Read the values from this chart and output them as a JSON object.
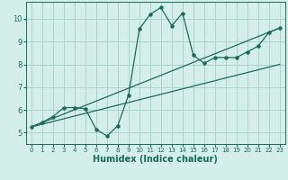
{
  "xlabel": "Humidex (Indice chaleur)",
  "ylabel": "",
  "background_color": "#d4eeea",
  "line_color": "#1a6b5a",
  "xlim": [
    -0.5,
    23.5
  ],
  "ylim": [
    4.5,
    10.75
  ],
  "x_ticks": [
    0,
    1,
    2,
    3,
    4,
    5,
    6,
    7,
    8,
    9,
    10,
    11,
    12,
    13,
    14,
    15,
    16,
    17,
    18,
    19,
    20,
    21,
    22,
    23
  ],
  "y_ticks": [
    5,
    6,
    7,
    8,
    9,
    10
  ],
  "curve1_x": [
    0,
    1,
    2,
    3,
    4,
    5,
    6,
    7,
    8,
    9,
    10,
    11,
    12,
    13,
    14,
    15,
    16,
    17,
    18,
    19,
    20,
    21,
    22,
    23
  ],
  "curve1_y": [
    5.25,
    5.45,
    5.7,
    6.1,
    6.1,
    6.05,
    5.15,
    4.85,
    5.3,
    6.65,
    9.55,
    10.2,
    10.5,
    9.7,
    10.25,
    8.4,
    8.05,
    8.3,
    8.3,
    8.3,
    8.55,
    8.8,
    9.4,
    9.6
  ],
  "line1_x": [
    0,
    23
  ],
  "line1_y": [
    5.25,
    9.6
  ],
  "line2_x": [
    0,
    23
  ],
  "line2_y": [
    5.25,
    8.0
  ],
  "grid_color": "#aad4cc",
  "tick_fontsize": 5.0,
  "xlabel_fontsize": 7.0
}
